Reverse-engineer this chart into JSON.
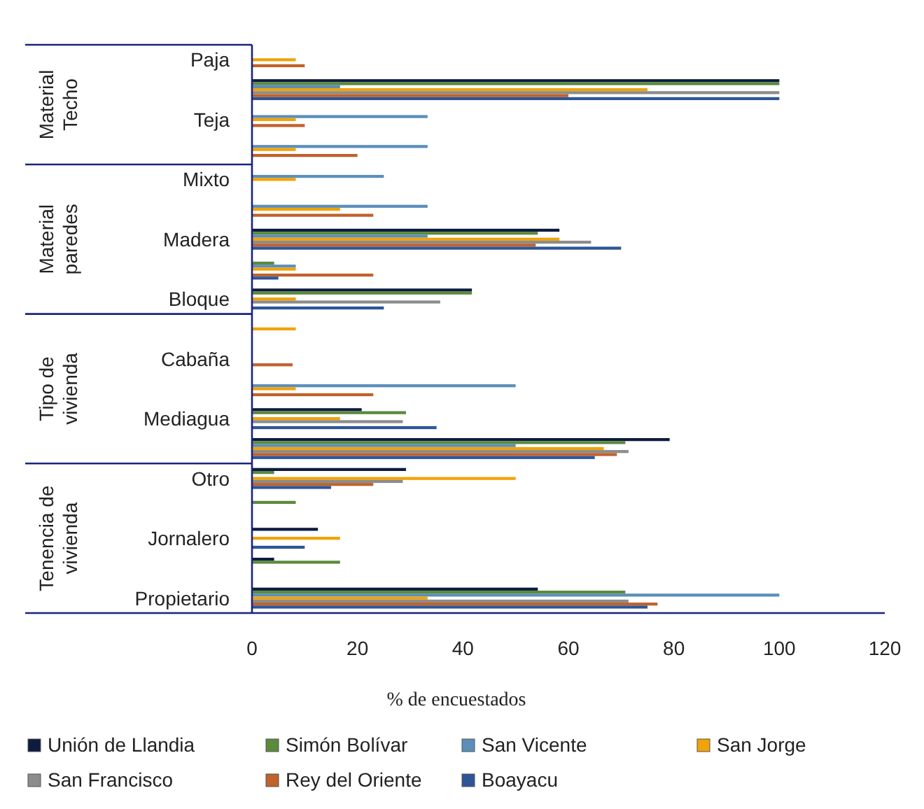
{
  "chart_data": {
    "type": "bar",
    "orientation": "horizontal",
    "xlabel": "% de encuestados",
    "categories": [
      "Paja",
      null,
      "Teja",
      null,
      "Mixto",
      null,
      "Madera",
      null,
      "Bloque",
      null,
      "Cabaña",
      null,
      "Mediagua",
      null,
      "Otro",
      null,
      "Jornalero",
      null,
      "Propietario"
    ],
    "annotations": [
      "Material Techo",
      "Material paredes",
      "Tipo de vivienda",
      "Tenencia de vivienda"
    ],
    "xlim": [
      0,
      120
    ],
    "xticks": [
      0,
      20,
      40,
      60,
      80,
      100,
      120
    ],
    "grid": false,
    "legend": "bottom",
    "series": [
      {
        "name": "Unión de Llandia",
        "color": "#0d1b3e",
        "values": [
          null,
          100,
          null,
          null,
          null,
          null,
          58.3,
          null,
          41.7,
          null,
          null,
          null,
          20.8,
          79.2,
          29.2,
          null,
          12.5,
          4.2,
          54.2
        ]
      },
      {
        "name": "Simón Bolívar",
        "color": "#5b8a3c",
        "values": [
          null,
          100,
          null,
          null,
          null,
          null,
          54.2,
          4.2,
          41.7,
          null,
          null,
          null,
          29.2,
          70.8,
          4.2,
          8.3,
          null,
          16.7,
          70.8
        ]
      },
      {
        "name": "San Vicente",
        "color": "#5b8fba",
        "values": [
          null,
          16.7,
          33.3,
          33.3,
          25,
          33.3,
          33.3,
          8.3,
          null,
          null,
          null,
          50,
          null,
          50,
          null,
          null,
          null,
          null,
          100
        ]
      },
      {
        "name": "San Jorge",
        "color": "#f0a30a",
        "values": [
          8.3,
          75,
          8.3,
          8.3,
          8.3,
          16.7,
          58.3,
          8.3,
          8.3,
          8.3,
          null,
          8.3,
          16.7,
          66.7,
          50,
          null,
          16.7,
          null,
          33.3
        ]
      },
      {
        "name": "San Francisco",
        "color": "#8c8c8c",
        "values": [
          null,
          100,
          null,
          null,
          null,
          null,
          64.3,
          null,
          35.7,
          null,
          null,
          null,
          28.6,
          71.4,
          28.6,
          null,
          null,
          null,
          71.4
        ]
      },
      {
        "name": "Rey del Oriente",
        "color": "#c0622b",
        "values": [
          10,
          60,
          10,
          20,
          null,
          23,
          53.8,
          23,
          null,
          null,
          7.7,
          23,
          null,
          69.2,
          23,
          null,
          null,
          null,
          76.9
        ]
      },
      {
        "name": "Boayacu",
        "color": "#2e5597",
        "values": [
          null,
          100,
          null,
          null,
          null,
          null,
          70,
          5,
          25,
          null,
          null,
          null,
          35,
          65,
          15,
          null,
          10,
          null,
          75
        ]
      }
    ]
  }
}
